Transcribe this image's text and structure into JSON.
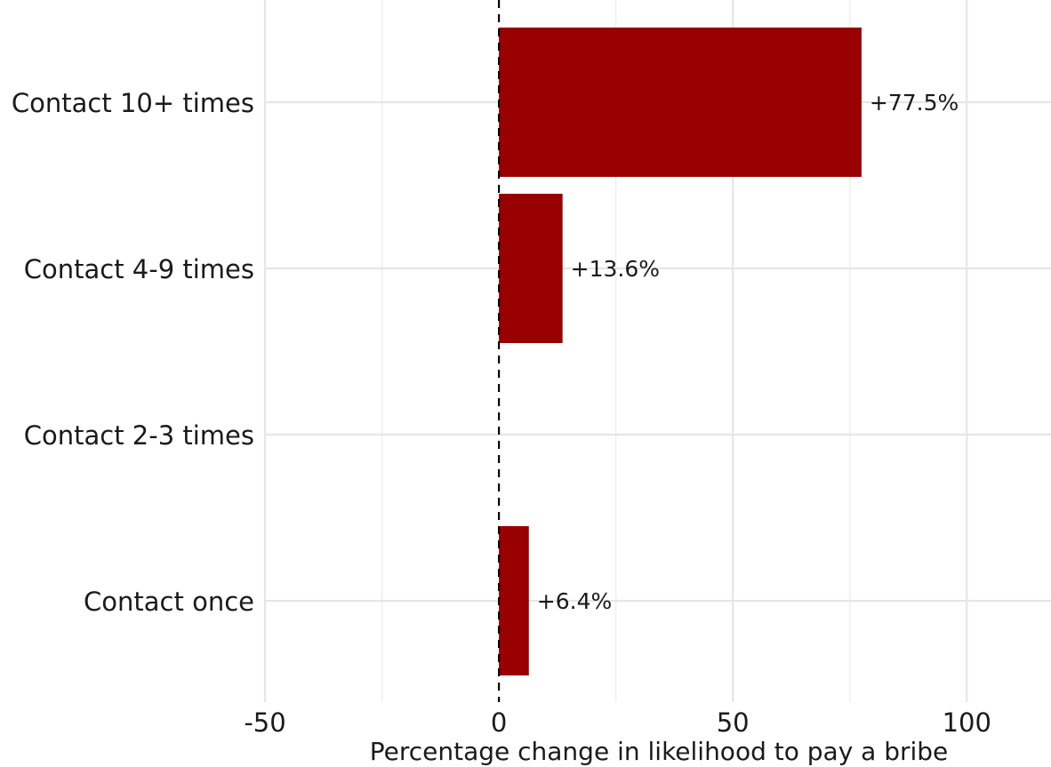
{
  "chart_data": {
    "type": "bar",
    "orientation": "horizontal",
    "categories": [
      "Contact 10+ times",
      "Contact 4-9 times",
      "Contact 2-3 times",
      "Contact once"
    ],
    "values": [
      77.5,
      13.6,
      null,
      6.4
    ],
    "data_labels": [
      "+77.5%",
      "+13.6%",
      "",
      "+6.4%"
    ],
    "title": "",
    "xlabel": "Percentage change in likelihood to pay a bribe",
    "ylabel": "",
    "xlim": [
      -50,
      118
    ],
    "x_ticks": [
      -50,
      0,
      50,
      100
    ],
    "x_tick_labels": [
      "-50",
      "0",
      "50",
      "100"
    ],
    "x_minor_ticks": [
      -25,
      25,
      75
    ],
    "reference_line": 0,
    "grid": true,
    "legend": "none",
    "bar_color": "#990000"
  }
}
